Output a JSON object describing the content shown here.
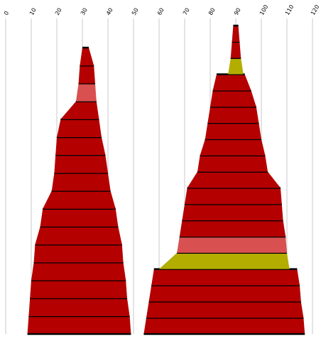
{
  "chart_data": {
    "type": "area",
    "orientation": "horizontal-stacked-layers",
    "grid": true,
    "x_axis": {
      "position": "top",
      "range": [
        0,
        120
      ],
      "ticks": [
        {
          "value": 0,
          "label": "0"
        },
        {
          "value": 10,
          "label": "10"
        },
        {
          "value": 20,
          "label": "20"
        },
        {
          "value": 30,
          "label": "30"
        },
        {
          "value": 40,
          "label": "40"
        },
        {
          "value": 50,
          "label": "50"
        },
        {
          "value": 60,
          "label": "60"
        },
        {
          "value": 70,
          "label": "70"
        },
        {
          "value": 80,
          "label": "80"
        },
        {
          "value": 90,
          "label": "90"
        },
        {
          "value": 100,
          "label": "100"
        },
        {
          "value": 110,
          "label": "110"
        },
        {
          "value": 120,
          "label": "120"
        }
      ]
    },
    "colors": {
      "dark_red": "#b50000",
      "light_red": "#d95050",
      "olive": "#b3ad00",
      "outline": "#000000",
      "grid": "#c8c8c8"
    },
    "shapes": [
      {
        "name": "left",
        "layers": [
          {
            "color": "dark_red",
            "bottom": [
              8.5,
              49.0
            ],
            "top": [
              9.0,
              48.5
            ]
          },
          {
            "color": "dark_red",
            "bottom": [
              9.0,
              48.5
            ],
            "top": [
              9.5,
              47.5
            ]
          },
          {
            "color": "dark_red",
            "bottom": [
              9.5,
              47.5
            ],
            "top": [
              10.0,
              47.0
            ]
          },
          {
            "color": "dark_red",
            "bottom": [
              10.0,
              47.0
            ],
            "top": [
              11.0,
              46.0
            ]
          },
          {
            "color": "dark_red",
            "bottom": [
              11.0,
              46.0
            ],
            "top": [
              11.5,
              45.5
            ]
          },
          {
            "color": "dark_red",
            "bottom": [
              11.5,
              45.5
            ],
            "top": [
              13.5,
              44.0
            ]
          },
          {
            "color": "dark_red",
            "bottom": [
              13.5,
              44.0
            ],
            "top": [
              14.5,
              43.0
            ]
          },
          {
            "color": "dark_red",
            "bottom": [
              14.5,
              43.0
            ],
            "top": [
              18.0,
              41.0
            ]
          },
          {
            "color": "dark_red",
            "bottom": [
              18.0,
              41.0
            ],
            "top": [
              19.0,
              40.0
            ]
          },
          {
            "color": "dark_red",
            "bottom": [
              19.0,
              40.0
            ],
            "top": [
              19.5,
              39.0
            ]
          },
          {
            "color": "dark_red",
            "bottom": [
              19.5,
              39.0
            ],
            "top": [
              20.0,
              37.5
            ]
          },
          {
            "color": "dark_red",
            "bottom": [
              20.0,
              37.5
            ],
            "top": [
              21.5,
              36.5
            ]
          },
          {
            "color": "dark_red",
            "bottom": [
              21.5,
              36.5
            ],
            "top": [
              27.5,
              35.5
            ]
          },
          {
            "color": "light_red",
            "bottom": [
              27.5,
              35.5
            ],
            "top": [
              28.5,
              35.0
            ]
          },
          {
            "color": "dark_red",
            "bottom": [
              28.5,
              35.0
            ],
            "top": [
              29.0,
              34.5
            ]
          },
          {
            "color": "dark_red",
            "bottom": [
              29.0,
              34.5
            ],
            "top": [
              30.0,
              32.5
            ]
          }
        ]
      },
      {
        "name": "right",
        "layers": [
          {
            "color": "dark_red",
            "bottom": [
              54.0,
              117.0
            ],
            "top": [
              55.0,
              116.5
            ]
          },
          {
            "color": "dark_red",
            "bottom": [
              55.0,
              116.5
            ],
            "top": [
              56.0,
              115.5
            ]
          },
          {
            "color": "dark_red",
            "bottom": [
              56.0,
              115.5
            ],
            "top": [
              57.0,
              115.0
            ]
          },
          {
            "color": "dark_red",
            "bottom": [
              57.0,
              115.0
            ],
            "top": [
              58.0,
              114.0
            ]
          },
          {
            "color": "olive",
            "bottom": [
              60.0,
              111.0
            ],
            "top": [
              67.0,
              110.0
            ]
          },
          {
            "color": "light_red",
            "bottom": [
              67.0,
              110.0
            ],
            "top": [
              68.0,
              109.5
            ]
          },
          {
            "color": "dark_red",
            "bottom": [
              68.0,
              109.5
            ],
            "top": [
              69.0,
              108.5
            ]
          },
          {
            "color": "dark_red",
            "bottom": [
              69.0,
              108.5
            ],
            "top": [
              70.0,
              108.0
            ]
          },
          {
            "color": "dark_red",
            "bottom": [
              70.0,
              108.0
            ],
            "top": [
              71.0,
              107.5
            ]
          },
          {
            "color": "dark_red",
            "bottom": [
              71.0,
              107.5
            ],
            "top": [
              75.0,
              102.5
            ]
          },
          {
            "color": "dark_red",
            "bottom": [
              75.0,
              102.5
            ],
            "top": [
              76.0,
              101.5
            ]
          },
          {
            "color": "dark_red",
            "bottom": [
              76.0,
              101.5
            ],
            "top": [
              78.0,
              100.0
            ]
          },
          {
            "color": "dark_red",
            "bottom": [
              78.0,
              100.0
            ],
            "top": [
              79.0,
              99.0
            ]
          },
          {
            "color": "dark_red",
            "bottom": [
              79.0,
              99.0
            ],
            "top": [
              80.0,
              98.0
            ]
          },
          {
            "color": "dark_red",
            "bottom": [
              80.0,
              98.0
            ],
            "top": [
              81.0,
              96.0
            ]
          },
          {
            "color": "dark_red",
            "bottom": [
              81.0,
              96.0
            ],
            "top": [
              82.5,
              93.5
            ]
          },
          {
            "color": "olive",
            "bottom": [
              87.0,
              93.0
            ],
            "top": [
              88.0,
              92.0
            ]
          },
          {
            "color": "dark_red",
            "bottom": [
              88.0,
              92.0
            ],
            "top": [
              88.5,
              91.5
            ]
          },
          {
            "color": "dark_red",
            "bottom": [
              88.5,
              91.5
            ],
            "top": [
              89.0,
              91.0
            ]
          }
        ]
      }
    ]
  }
}
